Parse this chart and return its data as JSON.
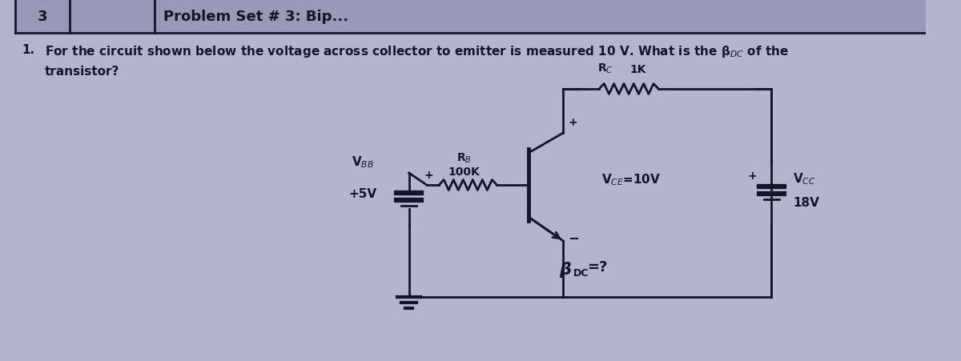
{
  "bg_color": "#b4b4cc",
  "line_color": "#15152a",
  "text_color": "#15152a",
  "header_color": "#9898b8",
  "header_border_color": "#15152a",
  "circuit": {
    "VBB_label": "V$_{BB}$",
    "VBB_value": "+5V",
    "RB_label": "R$_B$",
    "RB_value": "100K",
    "RC_label": "R$_C$",
    "RC_value": "1K",
    "VCE_label": "V$_{CE}$=10V",
    "beta_label": "β",
    "beta_sub": "DC",
    "VCC_label": "V$_{CC}$",
    "VCC_value": "18V",
    "plus_sign": "+",
    "minus_sign": "-"
  }
}
